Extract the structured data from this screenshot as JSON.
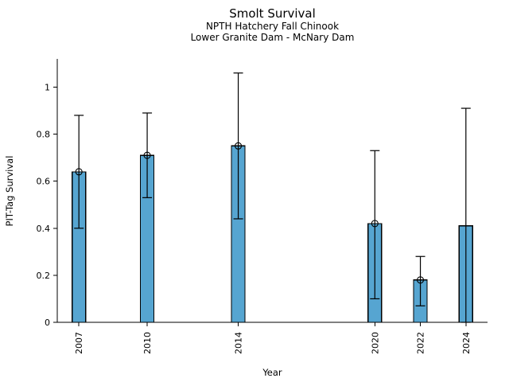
{
  "figure": {
    "title": "Smolt Survival",
    "subtitle_line1": "NPTH Hatchery Fall Chinook",
    "subtitle_line2": "Lower Granite Dam - McNary Dam"
  },
  "chart_data": {
    "type": "bar",
    "title": "Smolt Survival",
    "subtitle": [
      "NPTH Hatchery Fall Chinook",
      "Lower Granite Dam - McNary Dam"
    ],
    "xlabel": "Year",
    "ylabel": "PIT-Tag Survival",
    "categories": [
      2007,
      2010,
      2014,
      2020,
      2022,
      2024
    ],
    "values": [
      0.64,
      0.71,
      0.75,
      0.42,
      0.18,
      0.41
    ],
    "error_low": [
      0.4,
      0.53,
      0.44,
      0.1,
      0.07,
      0.0
    ],
    "error_high": [
      0.88,
      0.89,
      1.06,
      0.73,
      0.28,
      0.91
    ],
    "point_marker": [
      true,
      true,
      true,
      true,
      true,
      false
    ],
    "bar_color": "#56a5d1",
    "bar_edge_color": "#000000",
    "error_color": "#000000",
    "xlim": [
      2006.05,
      2024.95
    ],
    "ylim": [
      0,
      1.12
    ],
    "yticks": [
      0,
      0.2,
      0.4,
      0.6,
      0.8,
      1
    ],
    "ytick_labels": [
      "0",
      "0.2",
      "0.4",
      "0.6",
      "0.8",
      "1"
    ],
    "xtick_labels": [
      "2007",
      "2010",
      "2014",
      "2020",
      "2022",
      "2024"
    ],
    "grid": false,
    "legend": "none"
  }
}
